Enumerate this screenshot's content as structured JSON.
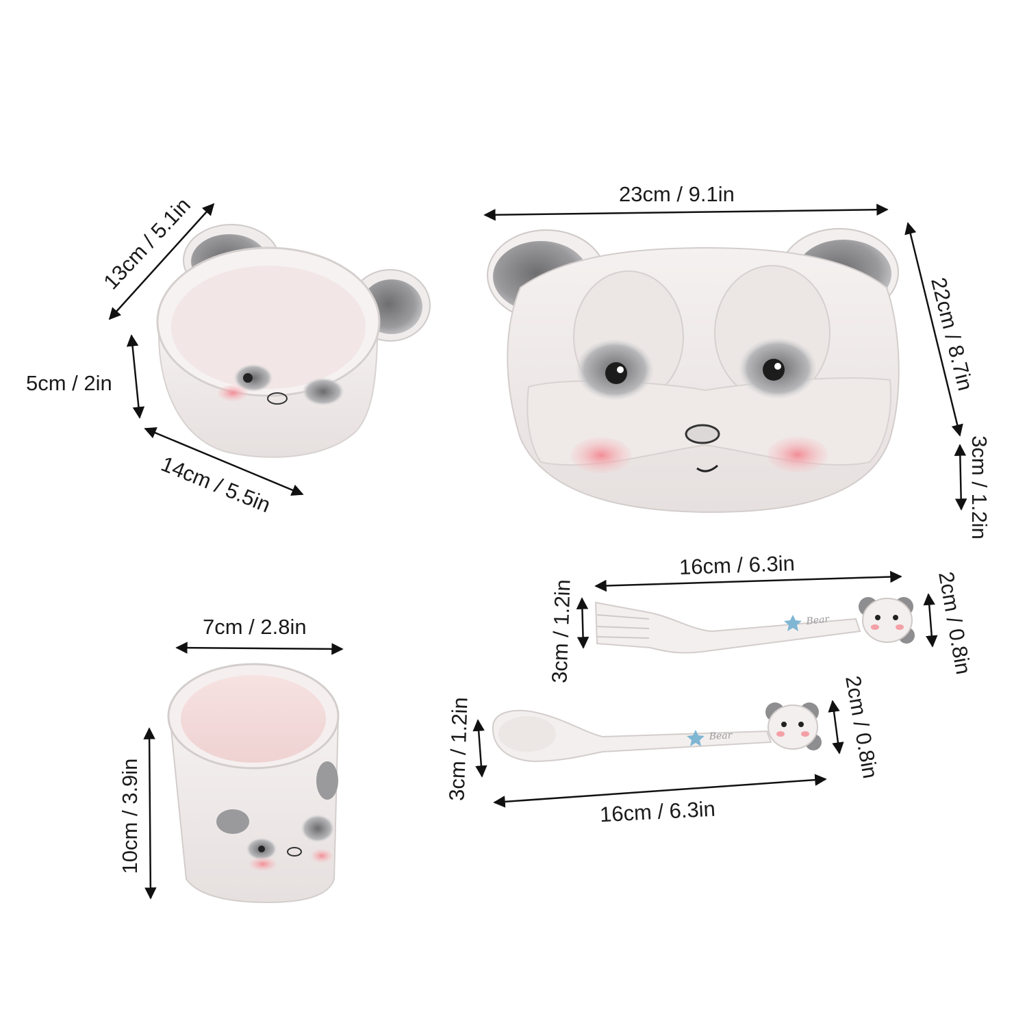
{
  "colors": {
    "background": "#ffffff",
    "product_white": "#f1eceb",
    "product_pink_inner": "#f3dcdc",
    "ear_gray": "#8e8e90",
    "cheek_pink": "#f3a0a6",
    "arrow_black": "#111111",
    "star_blue": "#7fb6d3"
  },
  "icons": {
    "arrow": "double-headed-arrow",
    "star": "blue-star-icon"
  },
  "bowl": {
    "diagonal_label": "13cm / 5.1in",
    "height_label": "5cm / 2in",
    "width_label": "14cm / 5.5in"
  },
  "plate": {
    "width_label": "23cm / 9.1in",
    "depth_label": "22cm / 8.7in",
    "height_label": "3cm / 1.2in"
  },
  "fork": {
    "length_label": "16cm / 6.3in",
    "head_label": "3cm / 1.2in",
    "handle_label": "2cm / 0.8in",
    "engraving": "Bear"
  },
  "spoon": {
    "length_label": "16cm / 6.3in",
    "head_label": "3cm / 1.2in",
    "handle_label": "2cm / 0.8in",
    "engraving": "Bear"
  },
  "cup": {
    "width_label": "7cm / 2.8in",
    "height_label": "10cm / 3.9in"
  }
}
